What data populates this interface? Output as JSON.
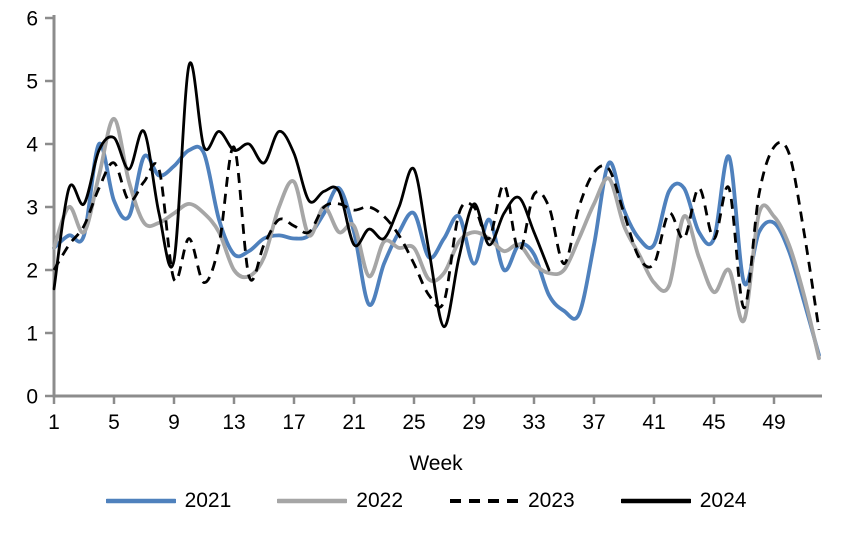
{
  "chart_data": {
    "type": "line",
    "xlabel": "Week",
    "xlim": [
      1,
      52
    ],
    "ylim": [
      0,
      6
    ],
    "grid": false,
    "legend_position": "bottom",
    "axis_color": "#8C8C8C",
    "text_color": "#000000",
    "x": [
      1,
      2,
      3,
      4,
      5,
      6,
      7,
      8,
      9,
      10,
      11,
      12,
      13,
      14,
      15,
      16,
      17,
      18,
      19,
      20,
      21,
      22,
      23,
      24,
      25,
      26,
      27,
      28,
      29,
      30,
      31,
      32,
      33,
      34,
      35,
      36,
      37,
      38,
      39,
      40,
      41,
      42,
      43,
      44,
      45,
      46,
      47,
      48,
      49,
      50,
      51,
      52
    ],
    "xticks": [
      1,
      5,
      9,
      13,
      17,
      21,
      25,
      29,
      33,
      37,
      41,
      45,
      49
    ],
    "yticks": [
      0,
      1,
      2,
      3,
      4,
      5,
      6
    ],
    "series": [
      {
        "name": "2021",
        "color": "#4F81BD",
        "style": "solid",
        "line_width": 3.8,
        "values": [
          2.35,
          2.55,
          2.55,
          4.0,
          3.1,
          2.85,
          3.8,
          3.5,
          3.65,
          3.9,
          3.85,
          2.8,
          2.25,
          2.3,
          2.5,
          2.55,
          2.5,
          2.55,
          2.9,
          3.3,
          2.6,
          1.45,
          2.1,
          2.6,
          2.9,
          2.2,
          2.5,
          2.85,
          2.1,
          2.8,
          2.0,
          2.4,
          2.25,
          1.6,
          1.35,
          1.3,
          2.4,
          3.7,
          2.95,
          2.5,
          2.4,
          3.25,
          3.3,
          2.6,
          2.5,
          3.8,
          1.8,
          2.6,
          2.75,
          2.3,
          1.5,
          0.65
        ]
      },
      {
        "name": "2022",
        "color": "#A6A6A6",
        "style": "solid",
        "line_width": 3.8,
        "values": [
          2.35,
          3.0,
          2.6,
          3.5,
          4.4,
          3.4,
          2.75,
          2.75,
          2.9,
          3.05,
          2.9,
          2.6,
          2.0,
          1.9,
          2.2,
          3.0,
          3.4,
          2.55,
          3.0,
          2.6,
          2.7,
          1.9,
          2.45,
          2.35,
          2.35,
          1.85,
          1.95,
          2.45,
          2.6,
          2.5,
          2.3,
          2.4,
          2.1,
          1.95,
          2.0,
          2.5,
          3.05,
          3.45,
          2.7,
          2.25,
          1.8,
          1.75,
          2.85,
          2.2,
          1.65,
          2.0,
          1.2,
          2.9,
          2.85,
          2.4,
          1.6,
          0.6
        ]
      },
      {
        "name": "2023",
        "color": "#000000",
        "style": "dashed",
        "line_width": 2.8,
        "values": [
          2.0,
          2.4,
          2.7,
          3.3,
          3.7,
          3.1,
          3.4,
          3.6,
          1.85,
          2.5,
          1.8,
          2.4,
          3.95,
          1.9,
          2.4,
          2.8,
          2.7,
          2.6,
          3.0,
          3.05,
          2.95,
          3.0,
          2.85,
          2.55,
          2.1,
          1.6,
          1.5,
          2.9,
          3.0,
          2.5,
          3.35,
          2.3,
          3.2,
          3.0,
          2.1,
          3.0,
          3.55,
          3.6,
          2.9,
          2.2,
          2.1,
          2.9,
          2.5,
          3.3,
          2.5,
          3.3,
          1.4,
          3.2,
          3.95,
          3.85,
          2.6,
          1.05
        ]
      },
      {
        "name": "2024",
        "color": "#000000",
        "style": "solid",
        "line_width": 2.8,
        "values": [
          1.7,
          3.3,
          3.05,
          3.9,
          4.1,
          3.6,
          4.2,
          2.9,
          2.15,
          5.25,
          3.95,
          4.2,
          3.9,
          4.0,
          3.7,
          4.2,
          3.85,
          3.1,
          3.25,
          3.25,
          2.4,
          2.65,
          2.5,
          3.0,
          3.6,
          2.3,
          1.1,
          2.2,
          3.05,
          2.4,
          2.9,
          3.15,
          2.6,
          2.0
        ]
      }
    ]
  }
}
